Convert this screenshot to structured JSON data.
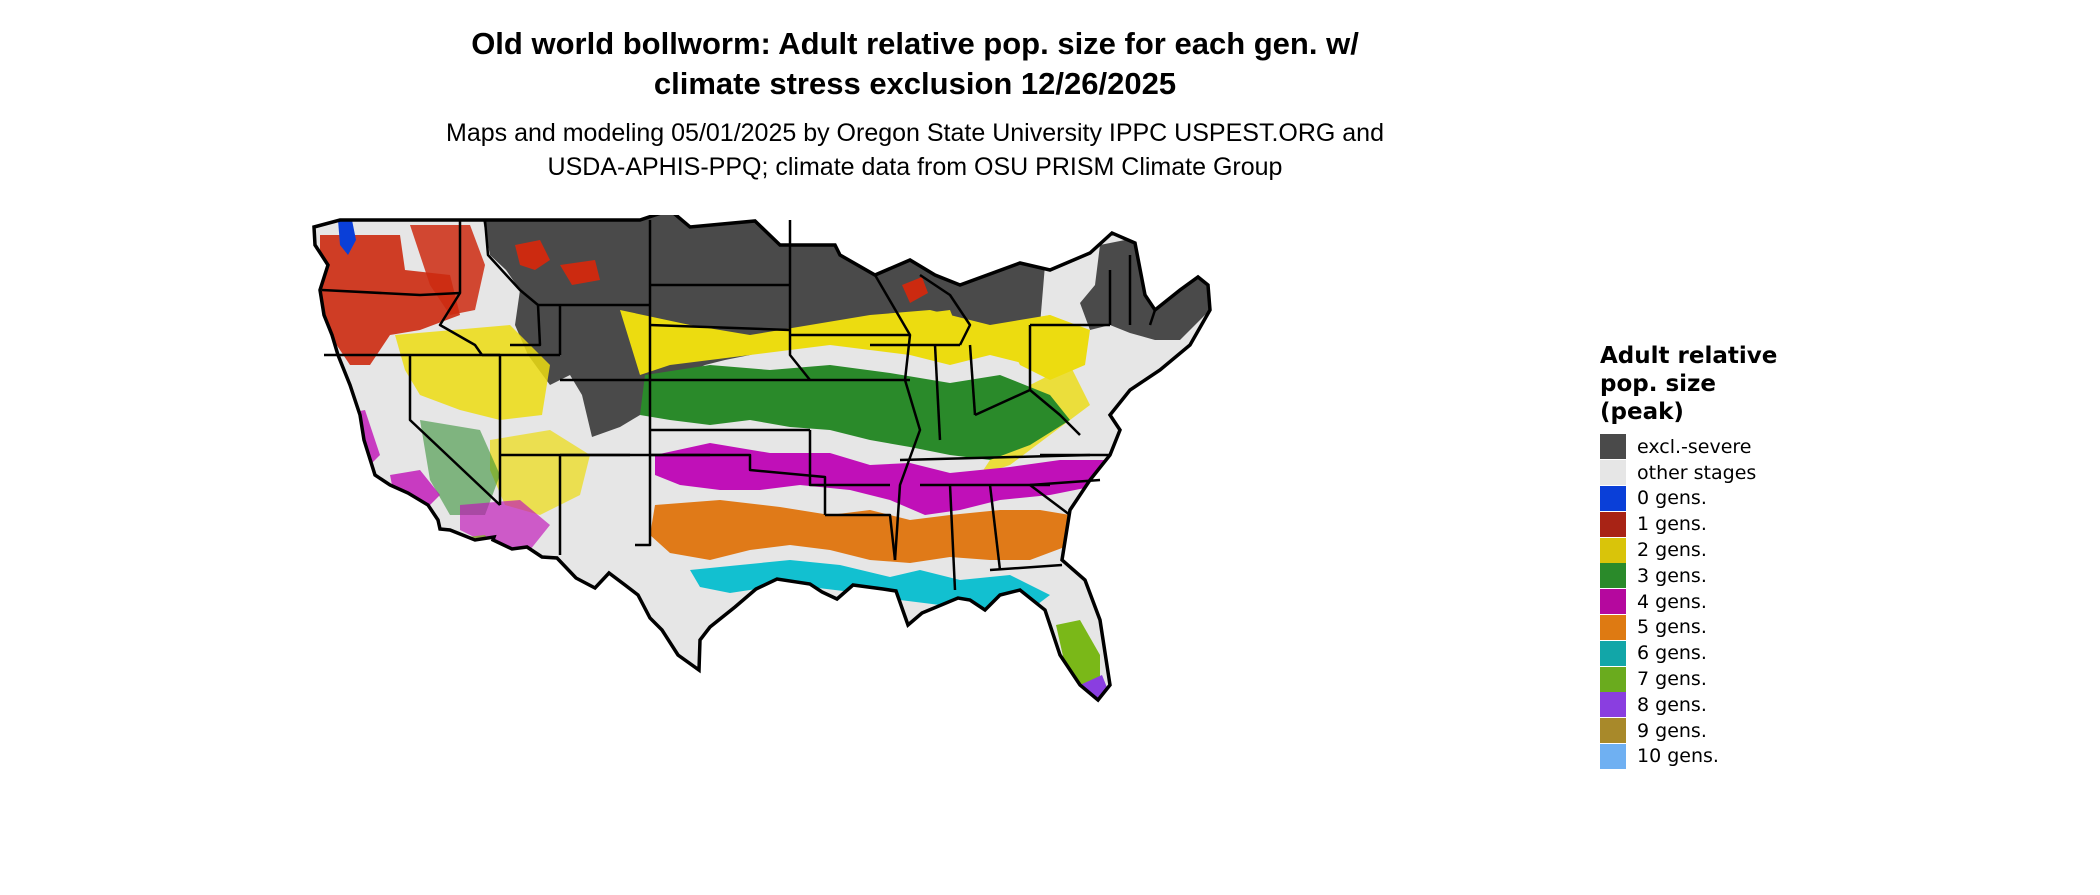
{
  "title": {
    "line1": "Old world bollworm: Adult relative pop. size for each gen. w/",
    "line2": "climate stress exclusion 12/26/2025"
  },
  "subtitle": {
    "line1": "Maps and modeling 05/01/2025 by Oregon State University IPPC USPEST.ORG and",
    "line2": "USDA-APHIS-PPQ; climate data from OSU PRISM Climate Group"
  },
  "legend": {
    "title_lines": [
      "Adult relative",
      "pop. size",
      "(peak)"
    ],
    "items": [
      {
        "label": "excl.-severe",
        "color": "#4a4a4a",
        "icon": "swatch-excl-severe"
      },
      {
        "label": "other stages",
        "color": "#e6e6e6",
        "icon": "swatch-other-stages"
      },
      {
        "label": "0 gens.",
        "color": "#0a3fd8",
        "icon": "swatch-0-gens"
      },
      {
        "label": "1 gens.",
        "color": "#a82315",
        "icon": "swatch-1-gens"
      },
      {
        "label": "2 gens.",
        "color": "#d9c40a",
        "icon": "swatch-2-gens"
      },
      {
        "label": "3 gens.",
        "color": "#2a8a2a",
        "icon": "swatch-3-gens"
      },
      {
        "label": "4 gens.",
        "color": "#b5089e",
        "icon": "swatch-4-gens"
      },
      {
        "label": "5 gens.",
        "color": "#de7a12",
        "icon": "swatch-5-gens"
      },
      {
        "label": "6 gens.",
        "color": "#12a6a8",
        "icon": "swatch-6-gens"
      },
      {
        "label": "7 gens.",
        "color": "#6aab1e",
        "icon": "swatch-7-gens"
      },
      {
        "label": "8 gens.",
        "color": "#8a3ee0",
        "icon": "swatch-8-gens"
      },
      {
        "label": "9 gens.",
        "color": "#a8892a",
        "icon": "swatch-9-gens"
      },
      {
        "label": "10 gens.",
        "color": "#6fb0f2",
        "icon": "swatch-10-gens"
      }
    ]
  },
  "map": {
    "region": "contiguous-united-states",
    "colors": {
      "excluded": "#4a4a4a",
      "other": "#e6e6e6",
      "g0": "#0a3fd8",
      "g1": "#cc2a10",
      "g2": "#ecdc10",
      "g3": "#2a8a2a",
      "g4": "#c010b8",
      "g5": "#e07a18",
      "g6": "#12c0d0",
      "g7": "#7ab818",
      "g8": "#8a3ee0",
      "border": "#000000"
    }
  }
}
